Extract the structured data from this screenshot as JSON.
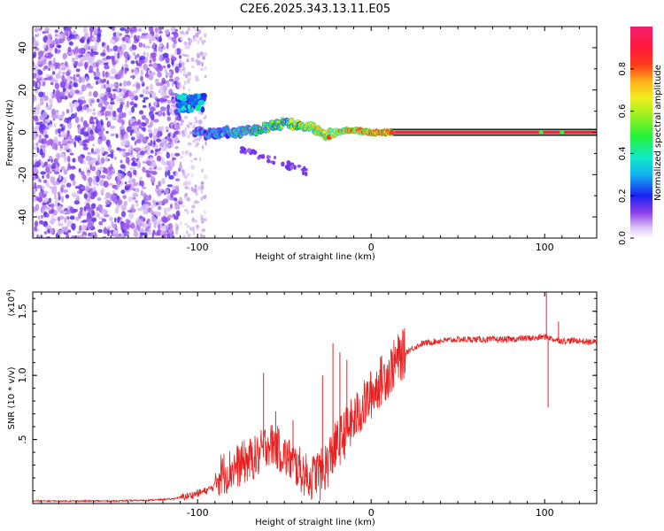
{
  "title": "C2E6.2025.343.13.11.E05",
  "chart_data": [
    {
      "type": "heatmap",
      "name": "spectrogram",
      "xlabel": "Height of straight line (km)",
      "ylabel": "Frequency (Hz)",
      "xlim": [
        -195,
        130
      ],
      "ylim": [
        -50,
        50
      ],
      "xticks": [
        -100,
        0,
        100
      ],
      "yticks": [
        -40,
        -20,
        0,
        20,
        40
      ],
      "colorbar": {
        "label": "Normalized spectral amplitude",
        "range": [
          0,
          1
        ],
        "ticks": [
          0.0,
          0.2,
          0.4,
          0.6,
          0.8
        ]
      },
      "features": [
        {
          "name": "noise",
          "x_range": [
            -195,
            -110
          ],
          "y_range": [
            -50,
            50
          ],
          "amplitude": 0.15
        },
        {
          "name": "scatter",
          "x_range": [
            -110,
            -95
          ],
          "y_range": [
            -50,
            50
          ],
          "amplitude": 0.05
        },
        {
          "name": "upper-blob",
          "x_range": [
            -112,
            -95
          ],
          "y_range": [
            10,
            18
          ],
          "amplitude": 0.35
        },
        {
          "name": "lower-branch",
          "x_range": [
            -75,
            -35
          ],
          "y_range": [
            -20,
            -8
          ],
          "amplitude": 0.15
        },
        {
          "name": "main-band",
          "points": [
            [
              -100,
              0
            ],
            [
              -92,
              -1
            ],
            [
              -85,
              0
            ],
            [
              -75,
              0
            ],
            [
              -65,
              1
            ],
            [
              -55,
              4
            ],
            [
              -45,
              4
            ],
            [
              -35,
              2
            ],
            [
              -25,
              -1
            ],
            [
              -20,
              0
            ],
            [
              -10,
              1
            ],
            [
              0,
              0
            ],
            [
              10,
              0
            ],
            [
              130,
              0
            ]
          ],
          "amplitude": [
            0.3,
            1.0
          ]
        },
        {
          "name": "stable-line",
          "x_range": [
            10,
            130
          ],
          "y": 0,
          "amplitude": 0.95
        }
      ]
    },
    {
      "type": "line",
      "name": "snr",
      "xlabel": "Height of straight line (km)",
      "ylabel": "SNR (10 * v/v)",
      "multiplier": "(x10",
      "multiplier_exp": "4",
      "multiplier_close": ")",
      "xlim": [
        -195,
        130
      ],
      "ylim": [
        0,
        1.65
      ],
      "xticks": [
        -100,
        0,
        100
      ],
      "yticks": [
        0.5,
        1.0,
        1.5
      ],
      "series": [
        {
          "name": "SNR",
          "color": "#e82020",
          "x": [
            -195,
            -150,
            -130,
            -115,
            -105,
            -95,
            -88,
            -80,
            -72,
            -65,
            -60,
            -55,
            -50,
            -45,
            -40,
            -35,
            -30,
            -25,
            -20,
            -15,
            -10,
            -5,
            0,
            5,
            10,
            15,
            20,
            25,
            30,
            40,
            50,
            60,
            70,
            80,
            90,
            95,
            98,
            100,
            102,
            105,
            110,
            115,
            120,
            125,
            130
          ],
          "y": [
            0.02,
            0.02,
            0.025,
            0.035,
            0.06,
            0.1,
            0.15,
            0.2,
            0.26,
            0.3,
            0.4,
            0.38,
            0.3,
            0.25,
            0.18,
            0.12,
            0.2,
            0.32,
            0.45,
            0.55,
            0.65,
            0.75,
            0.85,
            0.95,
            1.02,
            1.12,
            1.18,
            1.22,
            1.25,
            1.27,
            1.28,
            1.28,
            1.28,
            1.28,
            1.29,
            1.29,
            1.3,
            1.3,
            1.3,
            1.28,
            1.27,
            1.27,
            1.27,
            1.26,
            1.26
          ]
        }
      ],
      "spikes": [
        {
          "x": -62,
          "y": 1.02
        },
        {
          "x": -55,
          "y": 0.72
        },
        {
          "x": -45,
          "y": 0.65
        },
        {
          "x": -28,
          "y": 1.0
        },
        {
          "x": -22,
          "y": 1.25
        },
        {
          "x": -18,
          "y": 1.18
        },
        {
          "x": -14,
          "y": 1.12
        },
        {
          "x": 101,
          "y": 1.65
        },
        {
          "x": 102,
          "y": 0.75
        },
        {
          "x": 108,
          "y": 1.42
        }
      ]
    }
  ]
}
